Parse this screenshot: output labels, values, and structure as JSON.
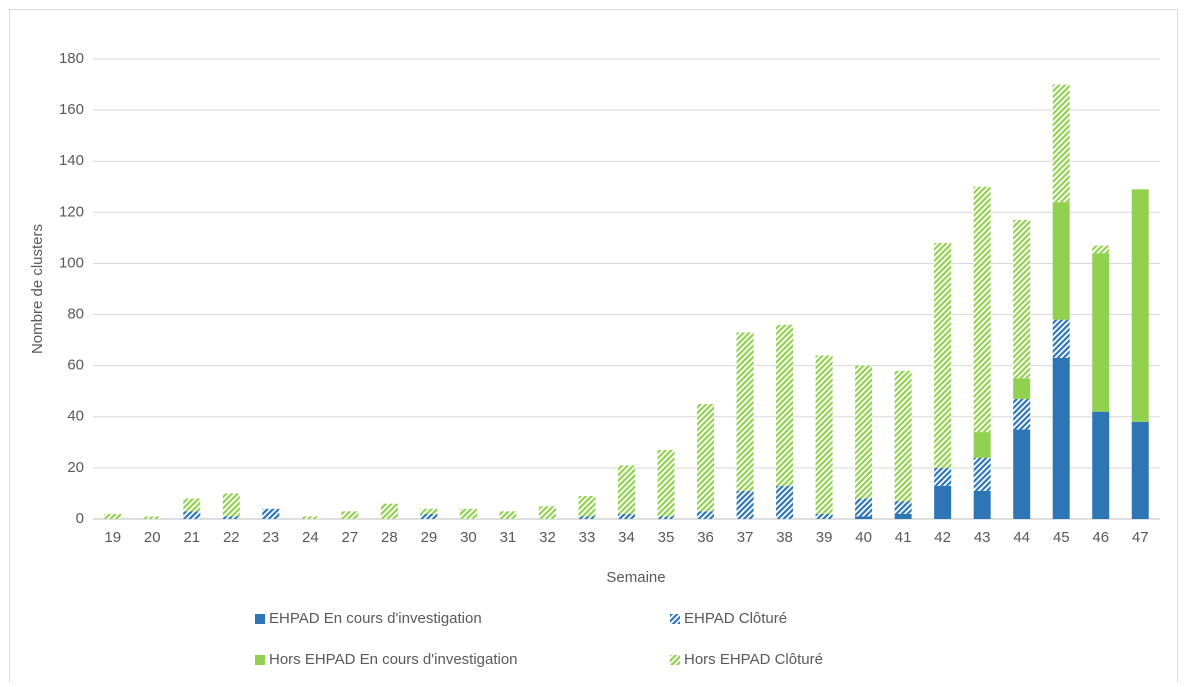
{
  "chart_data": {
    "type": "bar",
    "stacked": true,
    "x_label": "Semaine",
    "y_label": "Nombre de clusters",
    "categories": [
      "19",
      "20",
      "21",
      "22",
      "23",
      "24",
      "27",
      "28",
      "29",
      "30",
      "31",
      "32",
      "33",
      "34",
      "35",
      "36",
      "37",
      "38",
      "39",
      "40",
      "41",
      "42",
      "43",
      "44",
      "45",
      "46",
      "47"
    ],
    "series": [
      {
        "name": "EHPAD En cours d'investigation",
        "color": "#2e75b6",
        "hatched": false,
        "values": [
          0,
          0,
          0,
          0,
          0,
          0,
          0,
          0,
          0,
          0,
          0,
          0,
          0,
          0,
          0,
          0,
          0,
          0,
          0,
          1,
          2,
          13,
          11,
          35,
          63,
          42,
          38
        ]
      },
      {
        "name": "EHPAD Clôturé",
        "color": "#2e75b6",
        "hatched": true,
        "values": [
          0,
          0,
          3,
          1,
          4,
          0,
          0,
          0,
          2,
          0,
          0,
          0,
          1,
          2,
          1,
          3,
          11,
          13,
          2,
          7,
          5,
          7,
          13,
          12,
          15,
          0,
          0
        ]
      },
      {
        "name": "Hors EHPAD En cours d'investigation",
        "color": "#92d050",
        "hatched": false,
        "values": [
          0,
          0,
          0,
          0,
          0,
          0,
          0,
          0,
          0,
          0,
          0,
          0,
          0,
          0,
          0,
          0,
          0,
          0,
          0,
          0,
          0,
          0,
          10,
          8,
          46,
          62,
          91
        ]
      },
      {
        "name": "Hors EHPAD Clôturé",
        "color": "#92d050",
        "hatched": true,
        "values": [
          2,
          1,
          5,
          9,
          0,
          1,
          3,
          6,
          2,
          4,
          3,
          5,
          8,
          19,
          26,
          42,
          62,
          63,
          62,
          52,
          51,
          88,
          96,
          62,
          46,
          3,
          0
        ]
      }
    ],
    "ylim": [
      0,
      180
    ],
    "yticks": [
      0,
      20,
      40,
      60,
      80,
      100,
      120,
      140,
      160,
      180
    ],
    "grid": true
  }
}
